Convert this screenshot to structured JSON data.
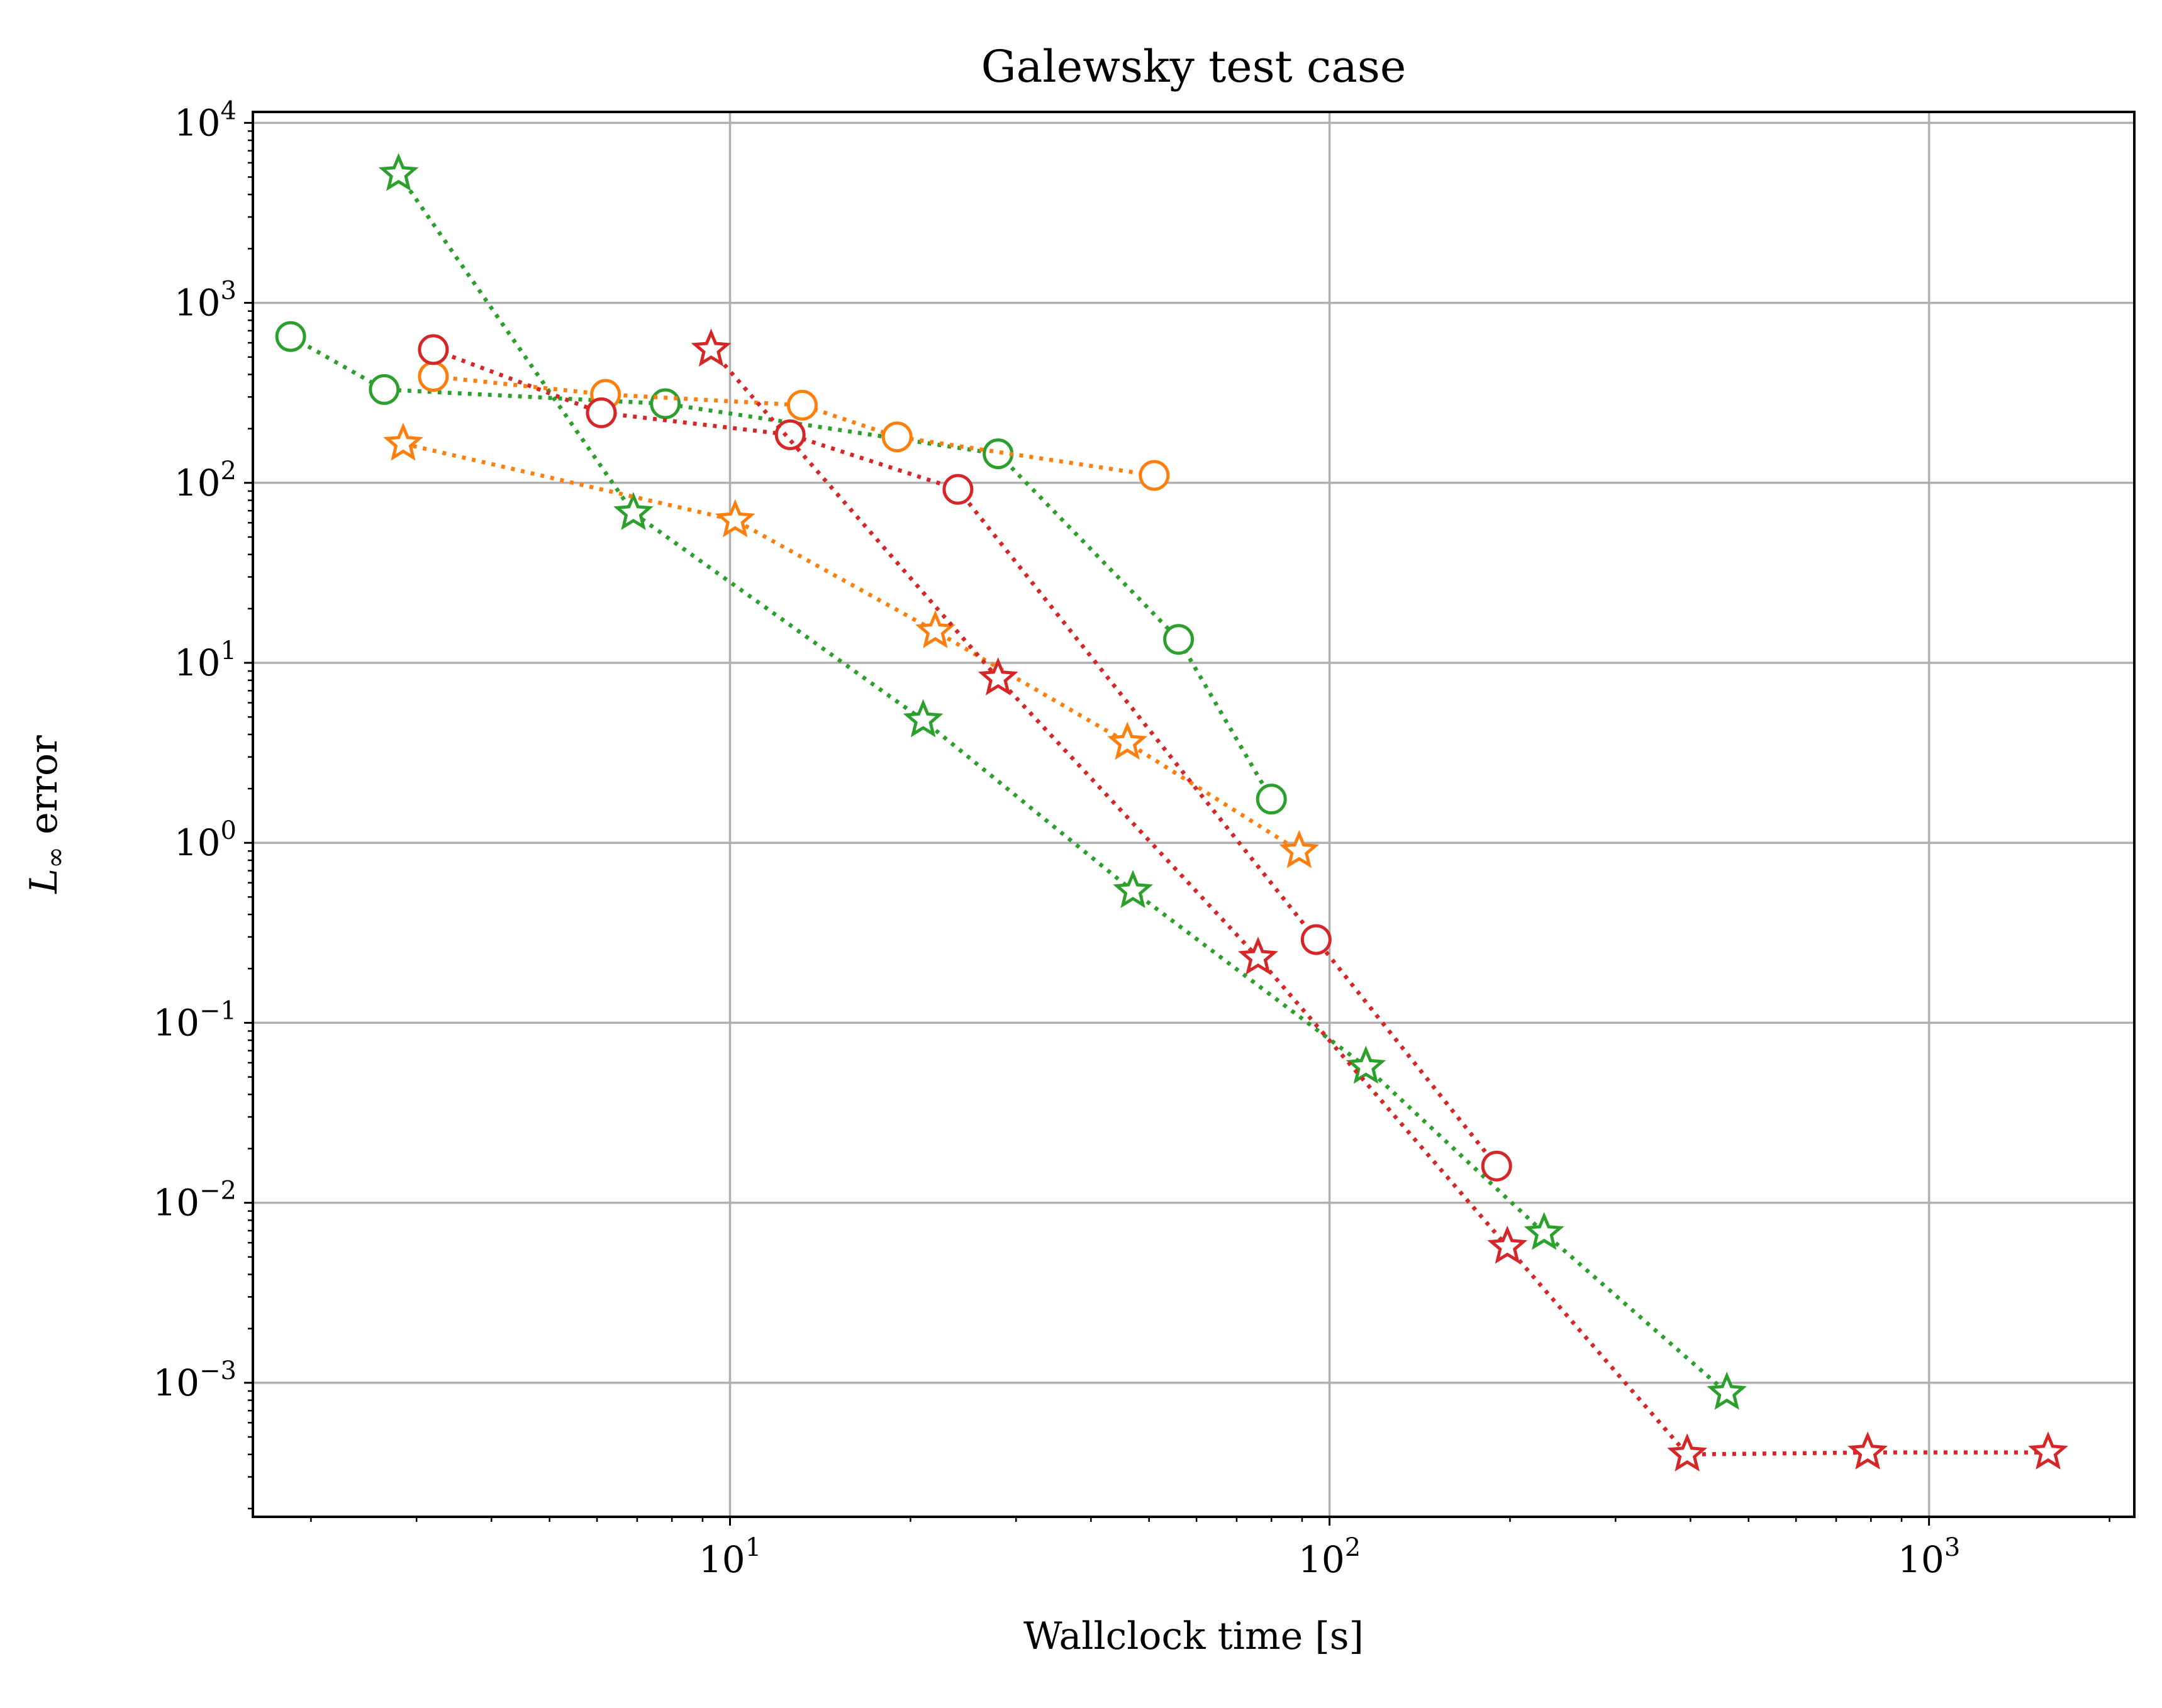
{
  "chart_data": {
    "type": "scatter",
    "title": "Galewsky test case",
    "xlabel": "Wallclock time [s]",
    "ylabel": {
      "main": "L",
      "sub": "∞",
      "rest": " error"
    },
    "xscale": "log",
    "yscale": "log",
    "xlim": [
      1.6,
      2200
    ],
    "ylim": [
      0.00018,
      11500
    ],
    "grid": true,
    "x_ticks": [
      {
        "value": 10,
        "base": "10",
        "exp": "1"
      },
      {
        "value": 100,
        "base": "10",
        "exp": "2"
      },
      {
        "value": 1000,
        "base": "10",
        "exp": "3"
      }
    ],
    "y_ticks": [
      {
        "value": 0.001,
        "base": "10",
        "exp": "−3"
      },
      {
        "value": 0.01,
        "base": "10",
        "exp": "−2"
      },
      {
        "value": 0.1,
        "base": "10",
        "exp": "−1"
      },
      {
        "value": 1,
        "base": "10",
        "exp": "0"
      },
      {
        "value": 10,
        "base": "10",
        "exp": "1"
      },
      {
        "value": 100,
        "base": "10",
        "exp": "2"
      },
      {
        "value": 1000,
        "base": "10",
        "exp": "3"
      },
      {
        "value": 10000,
        "base": "10",
        "exp": "4"
      }
    ],
    "series": [
      {
        "color": "#2ca02c",
        "marker": "star",
        "x": [
          2.8,
          6.9,
          21,
          47,
          115,
          228,
          460
        ],
        "y": [
          5200,
          68,
          4.8,
          0.54,
          0.057,
          0.0068,
          0.00088
        ]
      },
      {
        "color": "#2ca02c",
        "marker": "circle",
        "x": [
          1.85,
          2.65,
          7.8,
          28,
          56,
          80
        ],
        "y": [
          650,
          330,
          275,
          145,
          13.5,
          1.75
        ]
      },
      {
        "color": "#ff7f0e",
        "marker": "circle",
        "x": [
          3.2,
          6.2,
          13.2,
          19,
          51
        ],
        "y": [
          390,
          310,
          270,
          180,
          110
        ]
      },
      {
        "color": "#ff7f0e",
        "marker": "star",
        "x": [
          2.85,
          10.2,
          22,
          46,
          89
        ],
        "y": [
          165,
          62,
          15,
          3.6,
          0.9
        ]
      },
      {
        "color": "#d62728",
        "marker": "circle",
        "x": [
          3.2,
          6.1,
          12.6,
          24,
          95,
          190
        ],
        "y": [
          550,
          245,
          185,
          92,
          0.29,
          0.016
        ]
      },
      {
        "color": "#d62728",
        "marker": "star",
        "x": [
          9.3,
          28,
          76,
          198,
          395,
          790,
          1580
        ],
        "y": [
          550,
          8.2,
          0.23,
          0.0057,
          0.0004,
          0.00041,
          0.00041
        ]
      }
    ]
  }
}
